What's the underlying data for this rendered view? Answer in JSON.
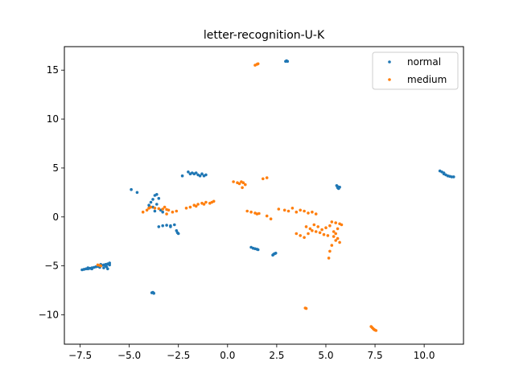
{
  "chart_data": {
    "type": "scatter",
    "title": "letter-recognition-U-K",
    "xlabel": "",
    "ylabel": "",
    "xlim": [
      -8.3,
      12.0
    ],
    "ylim": [
      -13.0,
      17.4
    ],
    "xticks": [
      -7.5,
      -5.0,
      -2.5,
      0.0,
      2.5,
      5.0,
      7.5,
      10.0
    ],
    "xtick_labels": [
      "−7.5",
      "−5.0",
      "−2.5",
      "0.0",
      "2.5",
      "5.0",
      "7.5",
      "10.0"
    ],
    "yticks": [
      -10,
      -5,
      0,
      5,
      10,
      15
    ],
    "ytick_labels": [
      "−10",
      "−5",
      "0",
      "5",
      "10",
      "15"
    ],
    "grid": false,
    "legend_position": "top-right",
    "series": [
      {
        "name": "normal",
        "color": "#1f77b4",
        "points": [
          [
            -7.4,
            -5.4
          ],
          [
            -7.3,
            -5.35
          ],
          [
            -7.2,
            -5.3
          ],
          [
            -7.1,
            -5.3
          ],
          [
            -7.0,
            -5.25
          ],
          [
            -6.9,
            -5.2
          ],
          [
            -6.8,
            -5.15
          ],
          [
            -6.7,
            -5.1
          ],
          [
            -6.6,
            -5.05
          ],
          [
            -6.5,
            -5.0
          ],
          [
            -6.4,
            -4.95
          ],
          [
            -6.3,
            -4.9
          ],
          [
            -6.2,
            -4.85
          ],
          [
            -6.1,
            -4.8
          ],
          [
            -6.0,
            -4.7
          ],
          [
            -6.2,
            -5.0
          ],
          [
            -6.1,
            -5.3
          ],
          [
            -6.3,
            -5.2
          ],
          [
            -6.5,
            -5.15
          ],
          [
            -6.9,
            -5.3
          ],
          [
            -7.1,
            -5.2
          ],
          [
            -6.0,
            -4.9
          ],
          [
            -6.15,
            -5.1
          ],
          [
            -6.45,
            -4.85
          ],
          [
            -3.8,
            -7.7
          ],
          [
            -3.75,
            -7.8
          ],
          [
            -3.85,
            -7.75
          ],
          [
            -4.9,
            2.8
          ],
          [
            -4.6,
            2.5
          ],
          [
            -3.8,
            1.8
          ],
          [
            -3.7,
            2.2
          ],
          [
            -3.6,
            2.3
          ],
          [
            -3.5,
            1.9
          ],
          [
            -3.9,
            1.5
          ],
          [
            -4.0,
            1.2
          ],
          [
            -3.8,
            1.0
          ],
          [
            -3.6,
            1.3
          ],
          [
            -3.4,
            0.7
          ],
          [
            -3.3,
            0.5
          ],
          [
            -3.7,
            0.6
          ],
          [
            -4.0,
            0.9
          ],
          [
            -3.5,
            -1.0
          ],
          [
            -3.3,
            -0.9
          ],
          [
            -3.1,
            -0.85
          ],
          [
            -2.9,
            -0.9
          ],
          [
            -2.7,
            -0.8
          ],
          [
            -2.9,
            -1.0
          ],
          [
            -2.6,
            -1.4
          ],
          [
            -2.55,
            -1.6
          ],
          [
            -2.5,
            -1.7
          ],
          [
            -2.3,
            4.2
          ],
          [
            -2.0,
            4.6
          ],
          [
            -1.9,
            4.4
          ],
          [
            -1.8,
            4.5
          ],
          [
            -1.7,
            4.4
          ],
          [
            -1.6,
            4.5
          ],
          [
            -1.5,
            4.3
          ],
          [
            -1.4,
            4.2
          ],
          [
            -1.3,
            4.4
          ],
          [
            -1.2,
            4.2
          ],
          [
            -1.1,
            4.3
          ],
          [
            1.2,
            -3.1
          ],
          [
            1.3,
            -3.2
          ],
          [
            1.4,
            -3.25
          ],
          [
            1.5,
            -3.3
          ],
          [
            1.55,
            -3.35
          ],
          [
            2.3,
            -3.9
          ],
          [
            2.35,
            -3.8
          ],
          [
            2.4,
            -3.75
          ],
          [
            2.45,
            -3.7
          ],
          [
            2.95,
            15.9
          ],
          [
            3.0,
            15.95
          ],
          [
            3.05,
            15.9
          ],
          [
            5.55,
            3.2
          ],
          [
            5.6,
            3.0
          ],
          [
            5.65,
            2.9
          ],
          [
            5.6,
            3.1
          ],
          [
            5.7,
            3.05
          ],
          [
            10.8,
            4.7
          ],
          [
            10.9,
            4.6
          ],
          [
            11.0,
            4.5
          ],
          [
            11.1,
            4.3
          ],
          [
            11.2,
            4.2
          ],
          [
            11.3,
            4.15
          ],
          [
            11.4,
            4.1
          ],
          [
            11.5,
            4.1
          ],
          [
            11.0,
            4.4
          ]
        ]
      },
      {
        "name": "medium",
        "color": "#ff7f0e",
        "points": [
          [
            -6.6,
            -4.9
          ],
          [
            -6.5,
            -4.95
          ],
          [
            -6.45,
            -5.0
          ],
          [
            -4.3,
            0.5
          ],
          [
            -4.1,
            0.7
          ],
          [
            -4.0,
            0.9
          ],
          [
            -3.9,
            1.0
          ],
          [
            -3.7,
            0.9
          ],
          [
            -3.5,
            0.85
          ],
          [
            -3.3,
            0.8
          ],
          [
            -3.1,
            0.75
          ],
          [
            -3.0,
            0.7
          ],
          [
            -3.2,
            1.0
          ],
          [
            -2.8,
            0.5
          ],
          [
            -2.6,
            0.6
          ],
          [
            -3.1,
            0.3
          ],
          [
            -1.9,
            1.0
          ],
          [
            -1.7,
            1.2
          ],
          [
            -1.5,
            1.3
          ],
          [
            -1.3,
            1.4
          ],
          [
            -1.1,
            1.5
          ],
          [
            -0.9,
            1.4
          ],
          [
            -0.8,
            1.5
          ],
          [
            -0.7,
            1.6
          ],
          [
            -1.6,
            1.1
          ],
          [
            -2.1,
            0.9
          ],
          [
            -1.2,
            1.3
          ],
          [
            0.3,
            3.6
          ],
          [
            0.5,
            3.5
          ],
          [
            0.6,
            3.4
          ],
          [
            0.7,
            3.6
          ],
          [
            0.8,
            3.5
          ],
          [
            0.9,
            3.3
          ],
          [
            0.75,
            3.0
          ],
          [
            1.8,
            3.9
          ],
          [
            2.0,
            4.0
          ],
          [
            1.4,
            15.5
          ],
          [
            1.5,
            15.6
          ],
          [
            1.55,
            15.65
          ],
          [
            1.0,
            0.6
          ],
          [
            1.2,
            0.5
          ],
          [
            1.4,
            0.4
          ],
          [
            1.5,
            0.3
          ],
          [
            1.6,
            0.35
          ],
          [
            2.0,
            0.1
          ],
          [
            2.2,
            -0.2
          ],
          [
            2.6,
            0.8
          ],
          [
            2.9,
            0.7
          ],
          [
            3.1,
            0.6
          ],
          [
            3.3,
            0.9
          ],
          [
            3.5,
            0.5
          ],
          [
            3.7,
            0.7
          ],
          [
            3.9,
            0.6
          ],
          [
            4.1,
            0.4
          ],
          [
            4.3,
            0.5
          ],
          [
            4.5,
            0.3
          ],
          [
            4.0,
            -1.0
          ],
          [
            4.2,
            -1.2
          ],
          [
            4.4,
            -0.8
          ],
          [
            4.6,
            -1.0
          ],
          [
            4.8,
            -1.3
          ],
          [
            5.0,
            -1.1
          ],
          [
            5.2,
            -0.9
          ],
          [
            4.5,
            -1.5
          ],
          [
            4.7,
            -1.6
          ],
          [
            4.9,
            -1.8
          ],
          [
            5.1,
            -1.9
          ],
          [
            4.3,
            -1.4
          ],
          [
            4.1,
            -1.7
          ],
          [
            3.9,
            -2.1
          ],
          [
            3.7,
            -1.9
          ],
          [
            3.5,
            -1.7
          ],
          [
            5.3,
            -0.5
          ],
          [
            5.5,
            -0.6
          ],
          [
            5.7,
            -0.7
          ],
          [
            5.8,
            -0.8
          ],
          [
            5.6,
            -1.2
          ],
          [
            5.5,
            -1.7
          ],
          [
            5.4,
            -2.0
          ],
          [
            5.5,
            -2.4
          ],
          [
            5.6,
            -2.2
          ],
          [
            5.7,
            -2.6
          ],
          [
            5.3,
            -2.9
          ],
          [
            5.2,
            -3.5
          ],
          [
            5.15,
            -4.2
          ],
          [
            5.4,
            -1.5
          ],
          [
            3.95,
            -9.3
          ],
          [
            4.0,
            -9.35
          ],
          [
            7.3,
            -11.2
          ],
          [
            7.35,
            -11.3
          ],
          [
            7.4,
            -11.4
          ],
          [
            7.45,
            -11.5
          ],
          [
            7.5,
            -11.55
          ],
          [
            7.55,
            -11.6
          ]
        ]
      }
    ]
  }
}
